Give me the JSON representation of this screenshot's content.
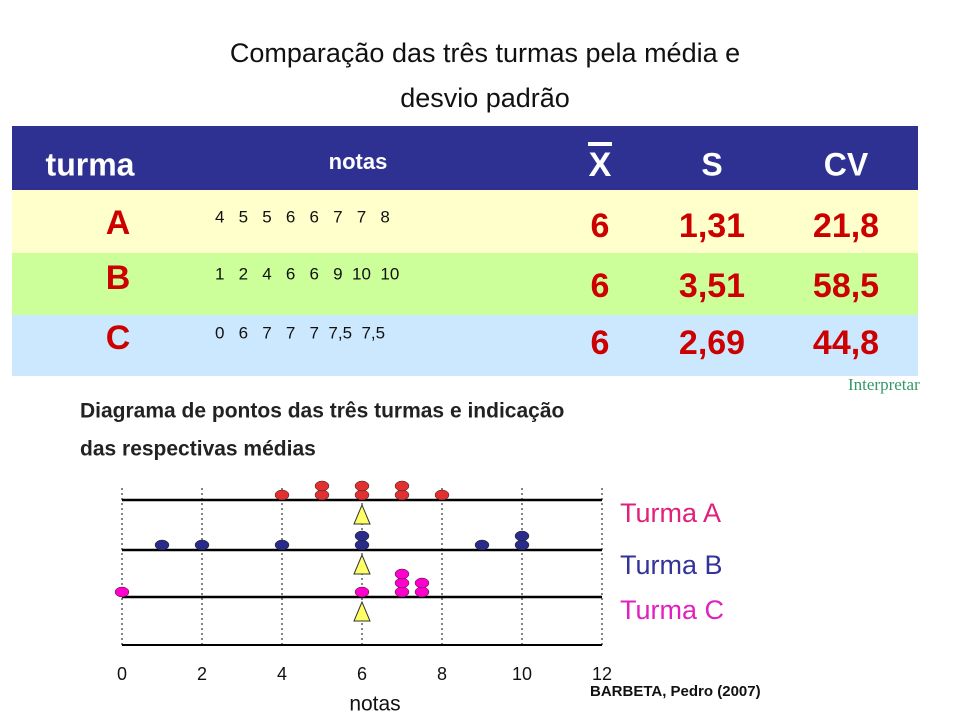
{
  "title": [
    "Comparação das três turmas pela média e",
    "desvio padrão"
  ],
  "table": {
    "header": [
      "turma",
      "notas",
      "X",
      "S",
      "CV"
    ],
    "rows": [
      [
        "A",
        "4   5   5   6   6   7   7   8",
        6,
        "1,31",
        "21,8"
      ],
      [
        "B",
        "1   2   4   6   6   9  10  10",
        6,
        "3,51",
        "58,5"
      ],
      [
        "C",
        "0   6   7   7   7  7,5  7,5",
        6,
        "2,69",
        "44,8"
      ]
    ]
  },
  "link": "Interpretar",
  "chart_data": {
    "type": "dot",
    "title": [
      "Diagrama de pontos das três turmas e indicação",
      "das respectivas médias"
    ],
    "xlabel": "notas",
    "xlim": [
      0,
      12
    ],
    "xticks": [
      0,
      2,
      4,
      6,
      8,
      10,
      12
    ],
    "series": [
      {
        "name": "Turma A",
        "color": "#e03030",
        "label_color": "#e0207a",
        "values": [
          4,
          5,
          5,
          6,
          6,
          7,
          7,
          8
        ]
      },
      {
        "name": "Turma B",
        "color": "#2a2a88",
        "label_color": "#333399",
        "values": [
          1,
          2,
          4,
          6,
          6,
          9,
          10,
          10
        ]
      },
      {
        "name": "Turma C",
        "color": "#ff00cc",
        "label_color": "#e020c0",
        "values": [
          0,
          6,
          7,
          7,
          7,
          7.5,
          7.5
        ]
      }
    ],
    "mean_color": "#ffff66"
  },
  "source": "BARBETA, Pedro (2007)"
}
